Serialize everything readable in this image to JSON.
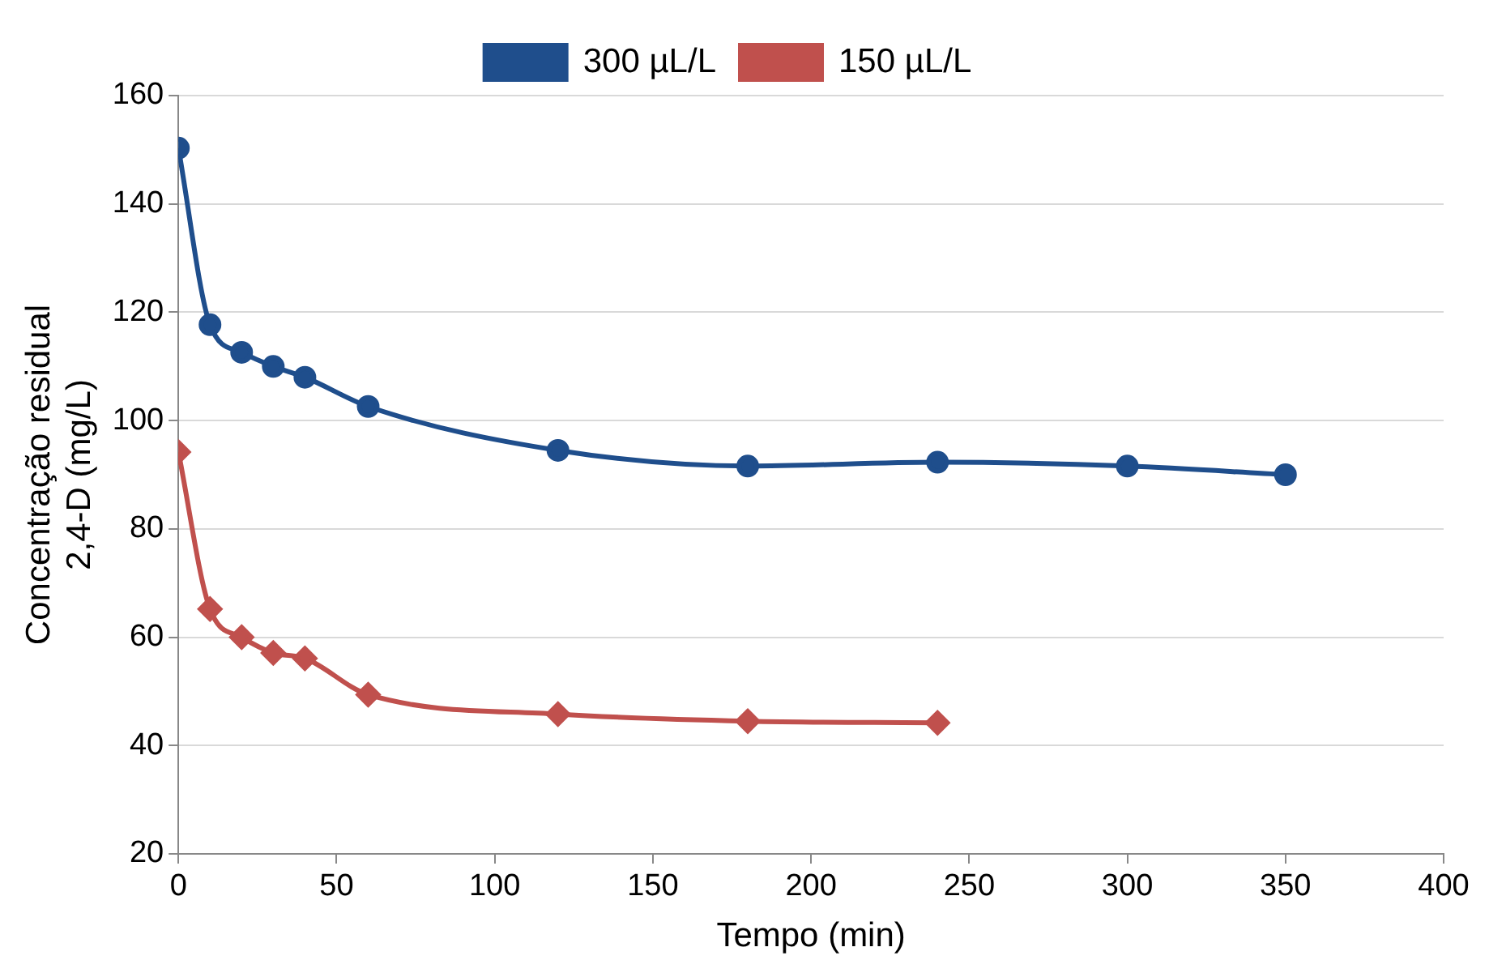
{
  "chart_data": {
    "type": "line",
    "xlabel": "Tempo (min)",
    "ylabel": "Concentração residual\n2,4-D (mg/L)",
    "xlim": [
      0,
      400
    ],
    "xticks": [
      0,
      50,
      100,
      150,
      200,
      250,
      300,
      350,
      400
    ],
    "ylim": [
      20,
      160
    ],
    "yticks": [
      20,
      40,
      60,
      80,
      100,
      120,
      140,
      160
    ],
    "grid": "y",
    "legend": "top",
    "series": [
      {
        "name": "300 µL/L",
        "color": "#1f4e8c",
        "marker": "circle",
        "x": [
          0,
          10,
          20,
          30,
          40,
          60,
          120,
          180,
          240,
          300,
          350
        ],
        "values": [
          150.3,
          117.7,
          112.6,
          110,
          108,
          102.6,
          94.5,
          91.6,
          92.3,
          91.6,
          90
        ]
      },
      {
        "name": "150 µL/L",
        "color": "#c0504d",
        "marker": "diamond",
        "x": [
          0,
          10,
          20,
          30,
          40,
          60,
          120,
          180,
          240
        ],
        "values": [
          94.2,
          65.2,
          60,
          57.1,
          56.1,
          49.4,
          45.8,
          44.5,
          44.2
        ]
      }
    ]
  }
}
